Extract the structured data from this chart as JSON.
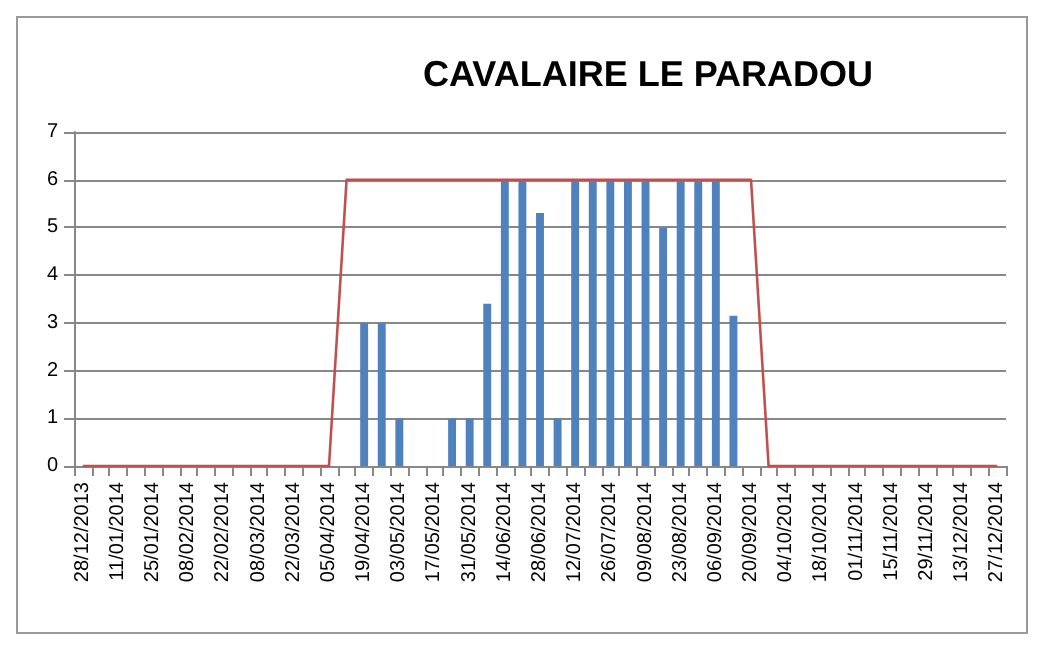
{
  "chart_data": {
    "type": "bar",
    "title": "CAVALAIRE LE PARADOU",
    "categories": [
      "28/12/2013",
      null,
      "11/01/2014",
      null,
      "25/01/2014",
      null,
      "08/02/2014",
      null,
      "22/02/2014",
      null,
      "08/03/2014",
      null,
      "22/03/2014",
      null,
      "05/04/2014",
      null,
      "19/04/2014",
      null,
      "03/05/2014",
      null,
      "17/05/2014",
      null,
      "31/05/2014",
      null,
      "14/06/2014",
      null,
      "28/06/2014",
      null,
      "12/07/2014",
      null,
      "26/07/2014",
      null,
      "09/08/2014",
      null,
      "23/08/2014",
      null,
      "06/09/2014",
      null,
      "20/09/2014",
      null,
      "04/10/2014",
      null,
      "18/10/2014",
      null,
      "01/11/2014",
      null,
      "15/11/2014",
      null,
      "29/11/2014",
      null,
      "13/12/2014",
      null,
      "27/12/2014"
    ],
    "series": [
      {
        "color": "#4f81bd",
        "values": [
          0,
          0,
          0,
          0,
          0,
          0,
          0,
          0,
          0,
          0,
          0,
          0,
          0,
          0,
          0,
          0,
          3,
          3,
          1,
          0,
          0,
          1,
          1,
          3.4,
          6,
          6,
          5.3,
          1,
          6,
          6,
          6,
          6,
          6,
          5,
          6,
          6,
          6,
          3.15,
          0,
          0,
          0,
          0,
          0,
          0,
          0,
          0,
          0,
          0,
          0,
          0,
          0,
          0,
          0
        ]
      },
      {
        "type": "line",
        "color": "#c0504d",
        "values": [
          0,
          0,
          0,
          0,
          0,
          0,
          0,
          0,
          0,
          0,
          0,
          0,
          0,
          0,
          0,
          6,
          6,
          6,
          6,
          6,
          6,
          6,
          6,
          6,
          6,
          6,
          6,
          6,
          6,
          6,
          6,
          6,
          6,
          6,
          6,
          6,
          6,
          6,
          6,
          0,
          0,
          0,
          0,
          0,
          0,
          0,
          0,
          0,
          0,
          0,
          0,
          0,
          0
        ]
      }
    ],
    "ylim": [
      0,
      7
    ],
    "yticks": [
      0,
      1,
      2,
      3,
      4,
      5,
      6,
      7
    ],
    "grid": "y",
    "marker": "none"
  }
}
